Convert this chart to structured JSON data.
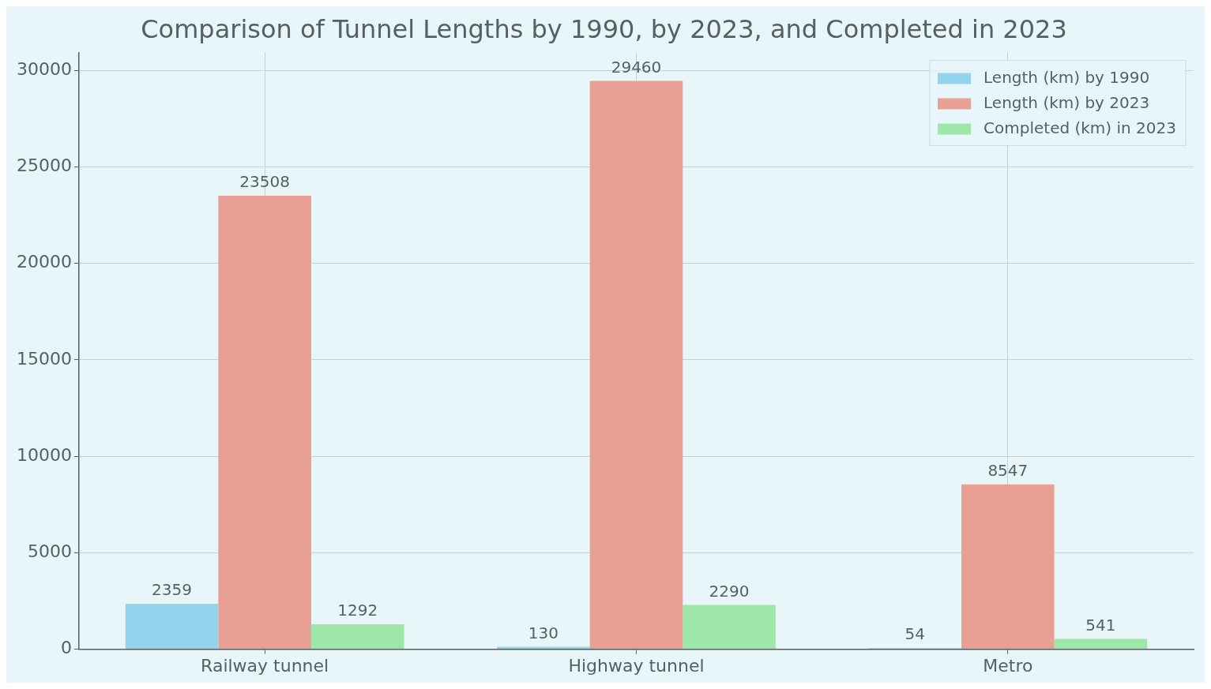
{
  "chart_data": {
    "type": "bar",
    "title": "Comparison of Tunnel Lengths by 1990, by 2023, and Completed in 2023",
    "categories": [
      "Railway tunnel",
      "Highway tunnel",
      "Metro"
    ],
    "series": [
      {
        "name": "Length (km) by 1990",
        "color": "#93d3ec",
        "values": [
          2359,
          130,
          54
        ]
      },
      {
        "name": "Length (km) by 2023",
        "color": "#e8a095",
        "values": [
          23508,
          29460,
          8547
        ]
      },
      {
        "name": "Completed (km) in 2023",
        "color": "#9de8a8",
        "values": [
          1292,
          2290,
          541
        ]
      }
    ],
    "ylim": [
      0,
      30933
    ],
    "yticks": [
      0,
      5000,
      10000,
      15000,
      20000,
      25000,
      30000
    ],
    "grid": true,
    "legend": "top right",
    "data_labels": true
  }
}
